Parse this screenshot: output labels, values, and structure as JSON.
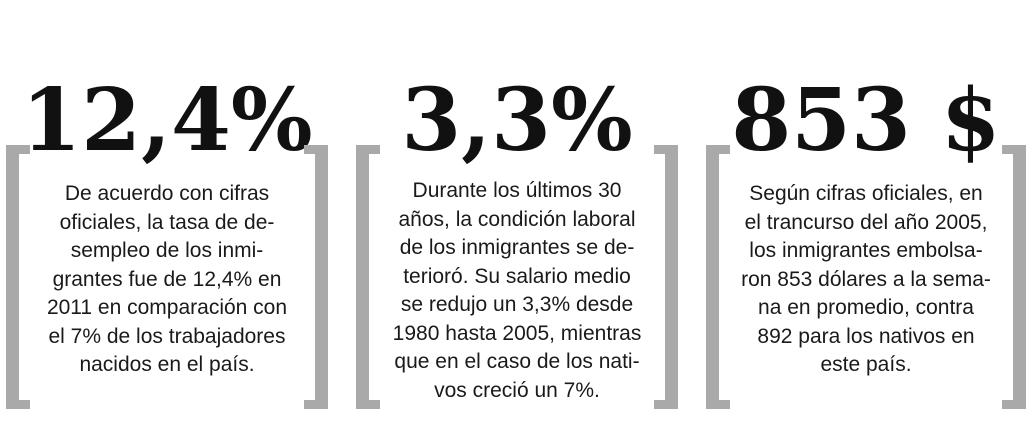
{
  "colors": {
    "text": "#111111",
    "bracket": "#a9a9a9",
    "background": "#ffffff"
  },
  "stats": [
    {
      "value": "12,4%",
      "lines": [
        "De acuerdo con cifras",
        "oficiales, la tasa de de-",
        "sempleo de los inmi-",
        "grantes fue de 12,4% en",
        "2011 en comparación con",
        "el 7% de los trabajadores",
        "nacidos en el país."
      ]
    },
    {
      "value": "3,3%",
      "lines": [
        "Durante los últimos 30",
        "años, la condición laboral",
        "de los inmigrantes se de-",
        "terioró. Su salario medio",
        "se redujo un 3,3% desde",
        "1980 hasta 2005, mientras",
        "que en el caso de los nati-",
        "vos creció un 7%."
      ]
    },
    {
      "value": "853 $",
      "lines": [
        "Según cifras oficiales, en",
        "el trancurso del año 2005,",
        "los inmigrantes embolsa-",
        "ron 853 dólares a la sema-",
        "na en promedio, contra",
        "892 para los nativos en",
        "este país."
      ]
    }
  ]
}
